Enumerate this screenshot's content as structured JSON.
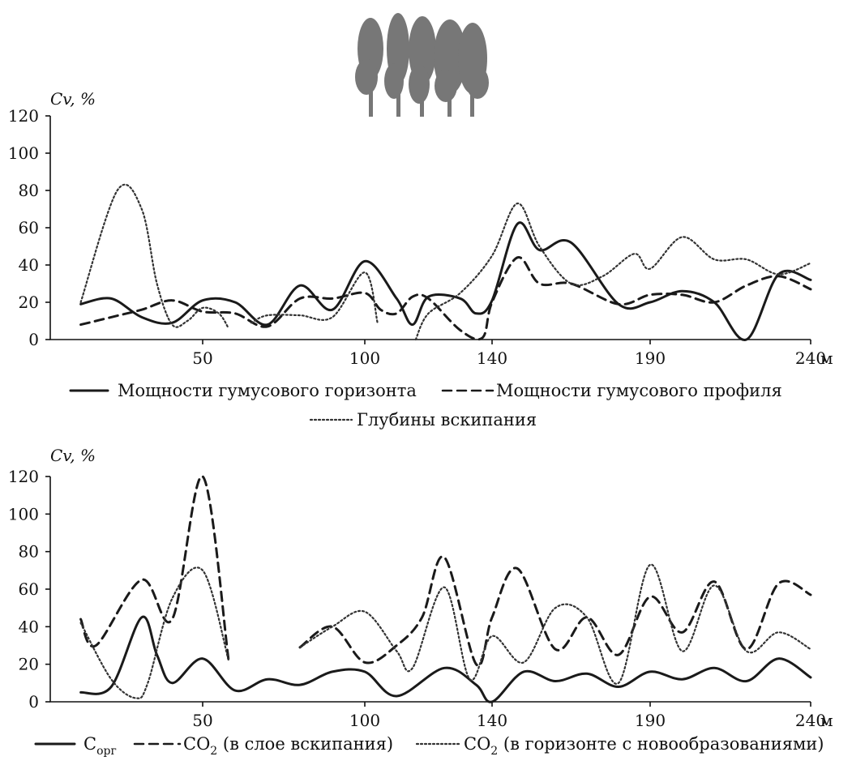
{
  "chart_data": [
    {
      "type": "line",
      "ylabel": "Cv, %",
      "x_unit": "м",
      "xticks": [
        50,
        100,
        140,
        190,
        240
      ],
      "yticks": [
        0,
        20,
        40,
        60,
        80,
        100,
        120
      ],
      "xlim": [
        0,
        240
      ],
      "ylim": [
        0,
        120
      ],
      "series": [
        {
          "name": "Мощности гумусового горизонта",
          "style": "solid",
          "segments": [
            [
              [
                10,
                19
              ],
              [
                20,
                22
              ],
              [
                30,
                12
              ],
              [
                40,
                9
              ],
              [
                50,
                21
              ],
              [
                60,
                20
              ],
              [
                70,
                8
              ],
              [
                80,
                29
              ],
              [
                90,
                16
              ],
              [
                100,
                42
              ],
              [
                110,
                22
              ],
              [
                115,
                8
              ],
              [
                120,
                23
              ],
              [
                130,
                22
              ],
              [
                135,
                14
              ],
              [
                140,
                21
              ],
              [
                148,
                62
              ],
              [
                155,
                48
              ],
              [
                165,
                52
              ],
              [
                180,
                19
              ],
              [
                190,
                20
              ],
              [
                200,
                26
              ],
              [
                210,
                20
              ],
              [
                220,
                0
              ],
              [
                230,
                35
              ],
              [
                240,
                32
              ]
            ]
          ]
        },
        {
          "name": "Мощности гумусового профиля",
          "style": "dashed",
          "segments": [
            [
              [
                10,
                8
              ],
              [
                20,
                12
              ],
              [
                30,
                16
              ],
              [
                40,
                21
              ],
              [
                50,
                15
              ],
              [
                60,
                14
              ],
              [
                70,
                7
              ],
              [
                80,
                22
              ],
              [
                90,
                22
              ],
              [
                100,
                25
              ],
              [
                105,
                16
              ],
              [
                110,
                14
              ],
              [
                115,
                23
              ],
              [
                120,
                22
              ],
              [
                130,
                5
              ],
              [
                137,
                1
              ],
              [
                140,
                20
              ],
              [
                148,
                44
              ],
              [
                155,
                30
              ],
              [
                165,
                30
              ],
              [
                180,
                19
              ],
              [
                190,
                24
              ],
              [
                200,
                24
              ],
              [
                210,
                20
              ],
              [
                220,
                29
              ],
              [
                230,
                34
              ],
              [
                240,
                27
              ]
            ]
          ]
        },
        {
          "name": "Глубины вскипания",
          "style": "dotted",
          "segments": [
            [
              [
                10,
                20
              ],
              [
                22,
                80
              ],
              [
                30,
                70
              ],
              [
                35,
                30
              ],
              [
                40,
                8
              ],
              [
                45,
                10
              ],
              [
                50,
                17
              ],
              [
                55,
                14
              ],
              [
                58,
                6
              ]
            ],
            [
              [
                65,
                9
              ],
              [
                70,
                13
              ],
              [
                80,
                13
              ],
              [
                90,
                12
              ],
              [
                100,
                36
              ],
              [
                104,
                9
              ]
            ],
            [
              [
                116,
                0
              ],
              [
                120,
                14
              ],
              [
                130,
                25
              ],
              [
                140,
                45
              ],
              [
                148,
                73
              ],
              [
                155,
                50
              ],
              [
                165,
                30
              ],
              [
                175,
                34
              ],
              [
                185,
                46
              ],
              [
                190,
                38
              ],
              [
                200,
                55
              ],
              [
                210,
                43
              ],
              [
                220,
                43
              ],
              [
                230,
                35
              ],
              [
                240,
                41
              ]
            ]
          ]
        }
      ]
    },
    {
      "type": "line",
      "ylabel": "Cv, %",
      "x_unit": "м",
      "xticks": [
        50,
        100,
        140,
        190,
        240
      ],
      "yticks": [
        0,
        20,
        40,
        60,
        80,
        100,
        120
      ],
      "xlim": [
        0,
        240
      ],
      "ylim": [
        0,
        120
      ],
      "series": [
        {
          "name": "Сорг",
          "style": "solid",
          "segments": [
            [
              [
                10,
                5
              ],
              [
                20,
                8
              ],
              [
                30,
                45
              ],
              [
                35,
                25
              ],
              [
                40,
                10
              ],
              [
                50,
                23
              ],
              [
                60,
                6
              ],
              [
                70,
                12
              ],
              [
                80,
                9
              ],
              [
                90,
                16
              ],
              [
                100,
                16
              ],
              [
                110,
                3
              ],
              [
                125,
                18
              ],
              [
                135,
                9
              ],
              [
                140,
                0
              ],
              [
                150,
                16
              ],
              [
                160,
                11
              ],
              [
                170,
                15
              ],
              [
                180,
                8
              ],
              [
                190,
                16
              ],
              [
                200,
                12
              ],
              [
                210,
                18
              ],
              [
                220,
                11
              ],
              [
                230,
                23
              ],
              [
                240,
                13
              ]
            ]
          ]
        },
        {
          "name": "CO2 (в слое вскипания)",
          "style": "dashed",
          "segments": [
            [
              [
                10,
                44
              ],
              [
                15,
                30
              ],
              [
                30,
                65
              ],
              [
                40,
                44
              ],
              [
                50,
                120
              ],
              [
                58,
                22
              ]
            ],
            [
              [
                80,
                29
              ],
              [
                90,
                40
              ],
              [
                100,
                21
              ],
              [
                110,
                30
              ],
              [
                118,
                45
              ],
              [
                125,
                77
              ],
              [
                135,
                20
              ],
              [
                140,
                45
              ],
              [
                148,
                71
              ],
              [
                160,
                28
              ],
              [
                170,
                45
              ],
              [
                180,
                25
              ],
              [
                190,
                56
              ],
              [
                200,
                37
              ],
              [
                210,
                64
              ],
              [
                220,
                28
              ],
              [
                230,
                63
              ],
              [
                240,
                57
              ]
            ]
          ]
        },
        {
          "name": "CO2 (в горизонте с новообразованиями)",
          "style": "dotted",
          "segments": [
            [
              [
                10,
                42
              ],
              [
                20,
                12
              ],
              [
                28,
                2
              ],
              [
                32,
                10
              ],
              [
                40,
                55
              ],
              [
                50,
                70
              ],
              [
                58,
                22
              ]
            ],
            [
              [
                80,
                29
              ],
              [
                90,
                40
              ],
              [
                100,
                48
              ],
              [
                110,
                27
              ],
              [
                115,
                18
              ],
              [
                125,
                61
              ],
              [
                133,
                12
              ],
              [
                140,
                35
              ],
              [
                150,
                21
              ],
              [
                160,
                50
              ],
              [
                170,
                45
              ],
              [
                180,
                10
              ],
              [
                190,
                73
              ],
              [
                200,
                27
              ],
              [
                210,
                62
              ],
              [
                220,
                27
              ],
              [
                230,
                37
              ],
              [
                240,
                28
              ]
            ]
          ]
        }
      ]
    }
  ],
  "legend_top": {
    "item1": "Мощности гумусового горизонта",
    "item2": "Мощности гумусового профиля",
    "item3": "Глубины вскипания"
  },
  "legend_bottom": {
    "item1_main": "C",
    "item1_sub": "орг",
    "item2_main": "CO",
    "item2_sub": "2",
    "item2_rest": " (в слое вскипания)",
    "item3_main": "CO",
    "item3_sub": "2",
    "item3_rest": " (в горизонте с новообразованиями)"
  },
  "colors": {
    "line": "#1a1a1a",
    "tree": "#777777"
  },
  "icons": {
    "trees": "tree-cluster-icon"
  }
}
